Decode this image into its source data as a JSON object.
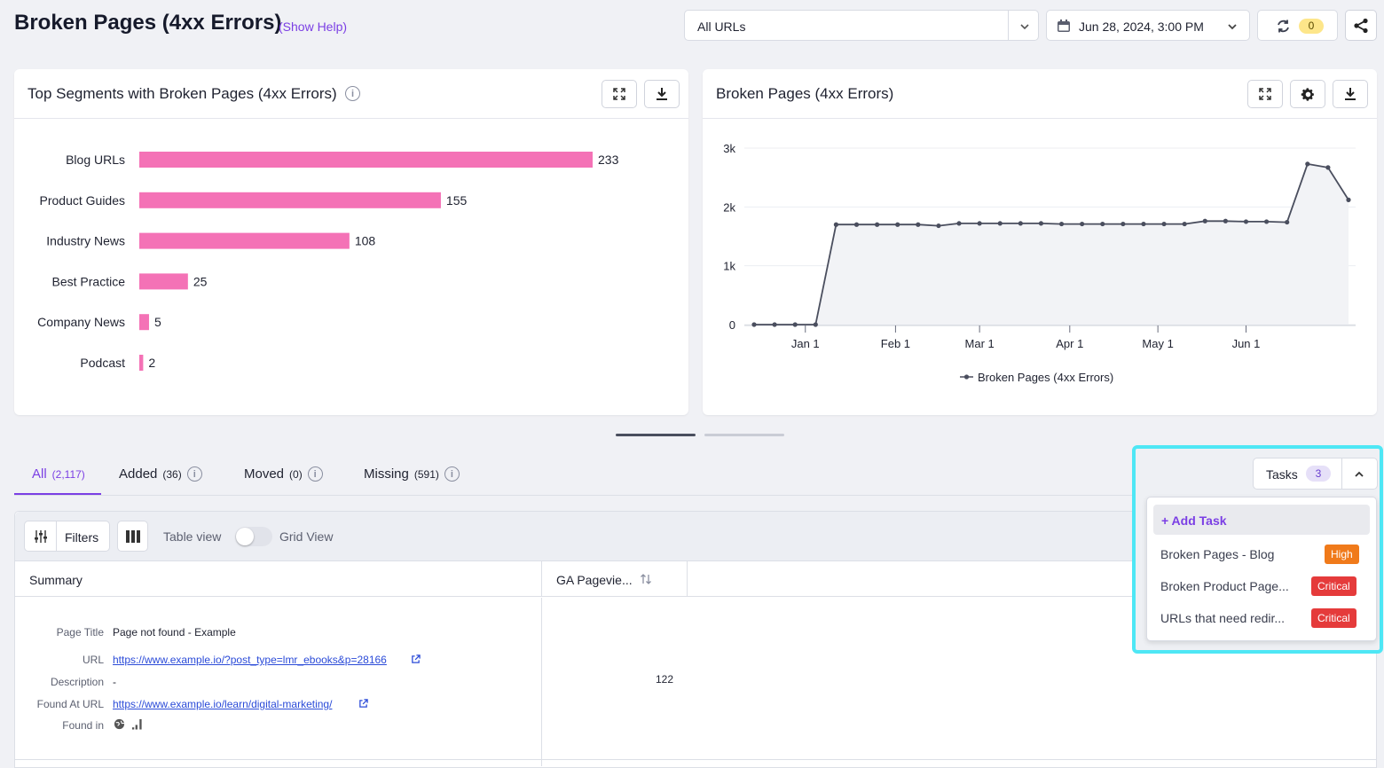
{
  "page": {
    "title": "Broken Pages (4xx Errors)",
    "help_link": "(Show Help)"
  },
  "toolbar": {
    "url_filter": "All URLs",
    "date": "Jun 28, 2024, 3:00 PM",
    "sync_count": "0"
  },
  "bar_card": {
    "title": "Top Segments with Broken Pages (4xx Errors)"
  },
  "line_card": {
    "title": "Broken Pages (4xx Errors)",
    "legend": "Broken Pages (4xx Errors)"
  },
  "tabs": [
    {
      "label": "All",
      "count": "(2,117)"
    },
    {
      "label": "Added",
      "count": "(36)"
    },
    {
      "label": "Moved",
      "count": "(0)"
    },
    {
      "label": "Missing",
      "count": "(591)"
    }
  ],
  "table_toolbar": {
    "filters_label": "Filters",
    "table_view_label": "Table view",
    "grid_view_label": "Grid View"
  },
  "table": {
    "headers": [
      "Summary",
      "GA Pagevie..."
    ],
    "row": {
      "labels": {
        "page_title": "Page Title",
        "url": "URL",
        "description": "Description",
        "found_at": "Found At URL",
        "found_in": "Found in"
      },
      "page_title": "Page not found - Example",
      "url": "https://www.example.io/?post_type=lmr_ebooks&p=28166",
      "description": "-",
      "found_at": "https://www.example.io/learn/digital-marketing/",
      "pageviews": "122"
    }
  },
  "tasks": {
    "label": "Tasks",
    "count": "3",
    "add_label": "+ Add Task",
    "items": [
      {
        "name": "Broken Pages - Blog",
        "priority": "High",
        "color": "#f07a1a"
      },
      {
        "name": "Broken Product Page...",
        "priority": "Critical",
        "color": "#e53b3b"
      },
      {
        "name": "URLs that need redir...",
        "priority": "Critical",
        "color": "#e53b3b"
      }
    ]
  },
  "colors": {
    "accent": "#7b3fe4",
    "bar": "#f472b6",
    "highlight": "#4ee7f5",
    "line": "#4a4e5e"
  },
  "chart_data": [
    {
      "type": "bar",
      "orientation": "horizontal",
      "title": "Top Segments with Broken Pages (4xx Errors)",
      "categories": [
        "Blog URLs",
        "Product Guides",
        "Industry News",
        "Best Practice",
        "Company News",
        "Podcast"
      ],
      "values": [
        233,
        155,
        108,
        25,
        5,
        2
      ],
      "xlim": [
        0,
        233
      ]
    },
    {
      "type": "area",
      "title": "Broken Pages (4xx Errors)",
      "legend": [
        "Broken Pages (4xx Errors)"
      ],
      "ylim": [
        0,
        3000
      ],
      "y_ticks": [
        0,
        1000,
        2000,
        3000
      ],
      "y_tick_labels": [
        "0",
        "1k",
        "2k",
        "3k"
      ],
      "x_tick_labels": [
        "Jan 1",
        "Feb 1",
        "Mar 1",
        "Apr 1",
        "May 1",
        "Jun 1"
      ],
      "x_tick_index": [
        2.5,
        6.9,
        11,
        15.4,
        19.7,
        24
      ],
      "values": [
        0,
        0,
        0,
        0,
        1700,
        1700,
        1700,
        1700,
        1700,
        1680,
        1720,
        1720,
        1720,
        1720,
        1720,
        1710,
        1710,
        1710,
        1710,
        1710,
        1710,
        1710,
        1760,
        1760,
        1750,
        1750,
        1740,
        2730,
        2670,
        2120
      ]
    }
  ]
}
